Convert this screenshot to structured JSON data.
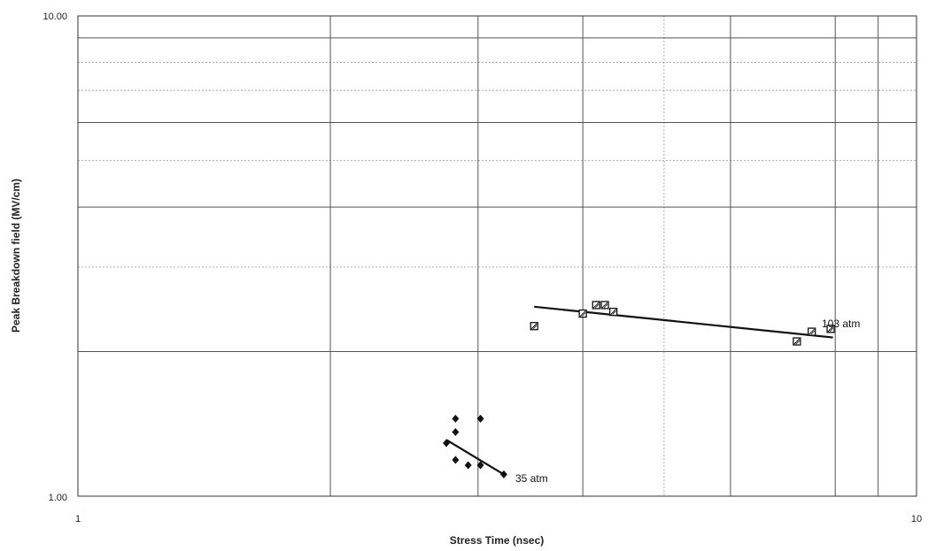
{
  "chart_data": {
    "type": "scatter",
    "title": "",
    "xlabel": "Stress Time (nsec)",
    "ylabel": "Peak Breakdown field (MV/cm)",
    "x_scale": "log",
    "y_scale": "log",
    "xlim": [
      1,
      10
    ],
    "ylim": [
      1,
      10
    ],
    "x_tick_labels": [
      "1",
      "10"
    ],
    "y_tick_labels": [
      "1.00",
      "10.00"
    ],
    "x_major_gridlines": [
      2,
      3,
      4,
      6,
      8,
      9
    ],
    "x_minor_gridlines": [
      5
    ],
    "y_major_gridlines": [
      2,
      4,
      6,
      9
    ],
    "y_minor_gridlines": [
      3,
      5,
      7,
      8
    ],
    "grid": true,
    "series": [
      {
        "name": "35 atm",
        "marker": "diamond",
        "color": "#111111",
        "x": [
          2.75,
          2.82,
          2.82,
          3.02,
          2.82,
          2.92,
          3.02,
          3.22
        ],
        "y": [
          1.29,
          1.36,
          1.45,
          1.45,
          1.19,
          1.16,
          1.16,
          1.11
        ],
        "fit": {
          "x": [
            2.75,
            3.22
          ],
          "y": [
            1.31,
            1.11
          ]
        }
      },
      {
        "name": "103 atm",
        "marker": "square",
        "color": "#111111",
        "x": [
          3.5,
          4.0,
          4.15,
          4.25,
          4.35,
          7.2,
          7.5,
          7.9
        ],
        "y": [
          2.26,
          2.4,
          2.5,
          2.5,
          2.42,
          2.1,
          2.2,
          2.23
        ],
        "fit": {
          "x": [
            3.5,
            7.95
          ],
          "y": [
            2.48,
            2.14
          ]
        }
      }
    ]
  }
}
